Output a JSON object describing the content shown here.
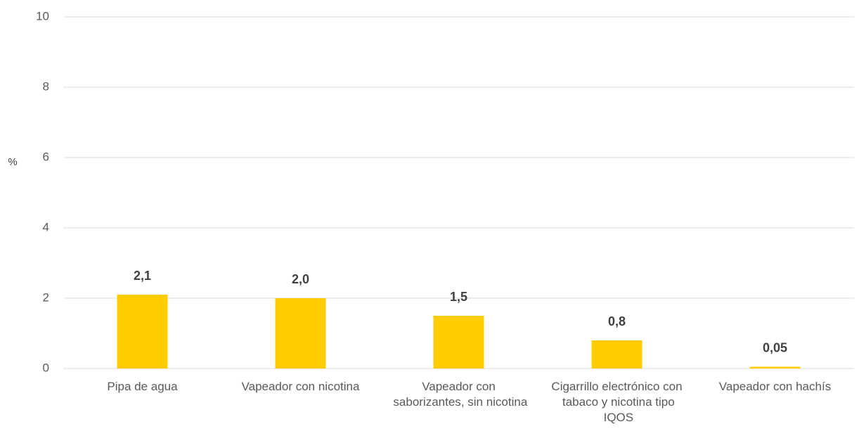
{
  "chart_data": {
    "type": "bar",
    "y_label": "%",
    "categories": [
      "Pipa de agua",
      "Vapeador con nicotina",
      "Vapeador con saborizantes, sin nicotina",
      "Cigarrillo electrónico con tabaco y nicotina tipo IQOS",
      "Vapeador con hachís"
    ],
    "values": [
      2.1,
      2.0,
      1.5,
      0.8,
      0.05
    ],
    "value_labels": [
      "2,1",
      "2,0",
      "1,5",
      "0,8",
      "0,05"
    ],
    "color": "#ffcc00",
    "ylim": [
      0,
      10
    ],
    "yticks": [
      0,
      2,
      4,
      6,
      8,
      10
    ],
    "grid": true
  }
}
